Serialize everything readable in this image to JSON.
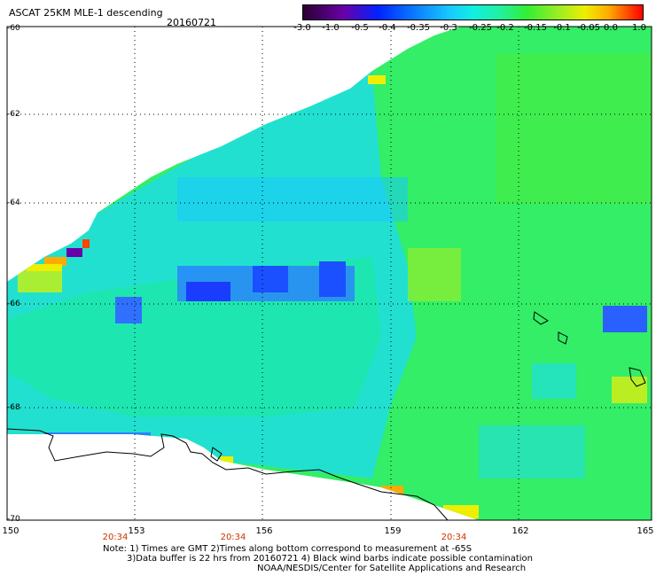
{
  "header": {
    "title": "ASCAT 25KM MLE-1 descending",
    "date": "20160721"
  },
  "colorbar": {
    "labels": [
      "-3.0",
      "-1.0",
      "-0.5",
      "-0.4",
      "-0.35",
      "-0.3",
      "-0.25",
      "-0.2",
      "-0.15",
      "-0.1",
      "-0.05",
      "0.0",
      "1.0"
    ],
    "colors": [
      "#2a0030",
      "#6a00aa",
      "#0022ff",
      "#0a7dff",
      "#18c8ff",
      "#10f0e0",
      "#22f0a0",
      "#33ee33",
      "#99ee22",
      "#eeee00",
      "#ffaa00",
      "#ff4400",
      "#ff0000"
    ]
  },
  "axes": {
    "lat_labels": [
      "-60",
      "-62",
      "-64",
      "-66",
      "-68",
      "-70"
    ],
    "lon_labels": [
      "150",
      "153",
      "156",
      "159",
      "162",
      "165"
    ]
  },
  "time_labels": [
    "20:34",
    "20:34",
    "20:34"
  ],
  "notes": [
    "Note: 1) Times are GMT 2)Times along bottom correspond to measurement at -65S",
    "3)Data buffer is 22 hrs from 20160721 4) Black wind barbs indicate possible contamination",
    "NOAA/NESDIS/Center for Satellite Applications and Research"
  ]
}
